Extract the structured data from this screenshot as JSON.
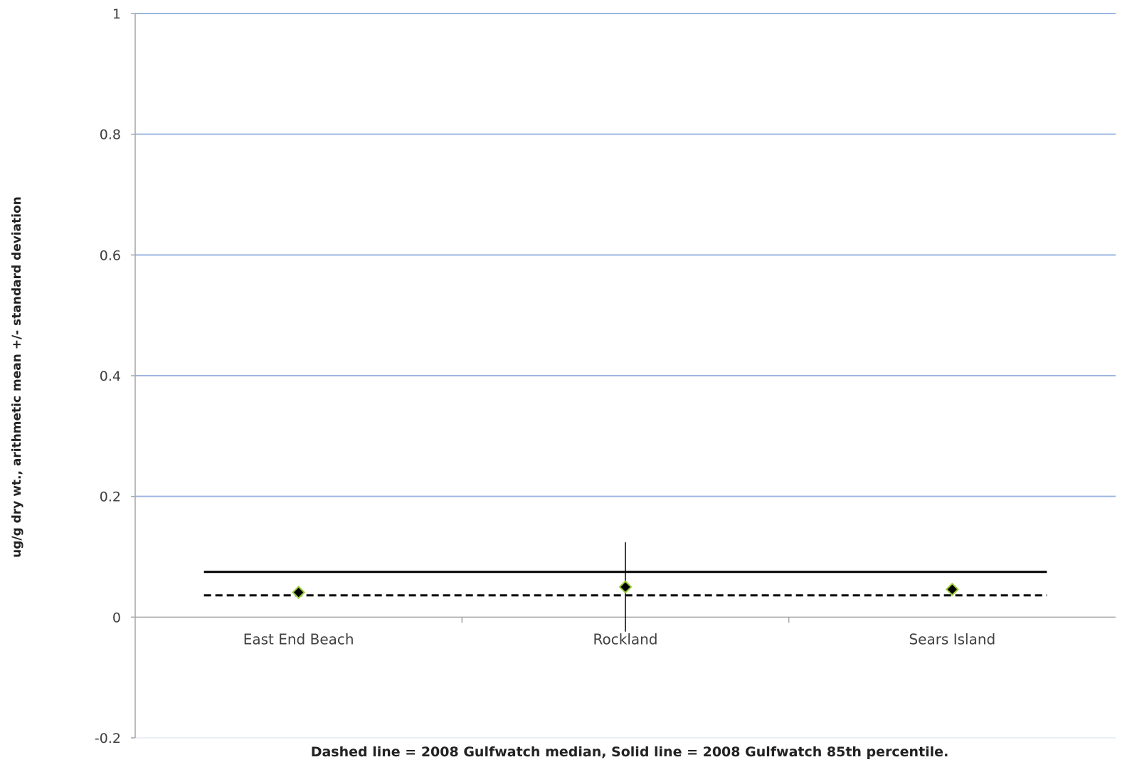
{
  "chart_data": {
    "type": "scatter",
    "title": "",
    "xlabel": "",
    "ylabel": "ug/g dry wt., arithmetic mean +/- standard  deviation",
    "footnote": "Dashed line = 2008 Gulfwatch median,  Solid line = 2008 Gulfwatch 85th percentile.",
    "ylim": [
      -0.2,
      1
    ],
    "yticks": [
      -0.2,
      0,
      0.2,
      0.4,
      0.6,
      0.8,
      1
    ],
    "ytick_labels": [
      "-0.2",
      "0",
      "0.2",
      "0.4",
      "0.6",
      "0.8",
      "1"
    ],
    "grid": true,
    "categories": [
      "East End Beach",
      "Rockland",
      "Sears Island"
    ],
    "series": [
      {
        "values": [
          0.041,
          0.05,
          0.046
        ],
        "errors": [
          0,
          0.074,
          0
        ],
        "marker": "diamond",
        "color": "#000000",
        "edge_color": "#9ACD32"
      }
    ],
    "reference_lines": [
      {
        "name": "2008 Gulfwatch 85th percentile",
        "style": "solid",
        "value": 0.075,
        "color": "#000000"
      },
      {
        "name": "2008 Gulfwatch median",
        "style": "dashed",
        "value": 0.036,
        "color": "#000000"
      }
    ],
    "colors": {
      "grid": "#9DB6E0",
      "axis": "#A6A6A6"
    }
  }
}
